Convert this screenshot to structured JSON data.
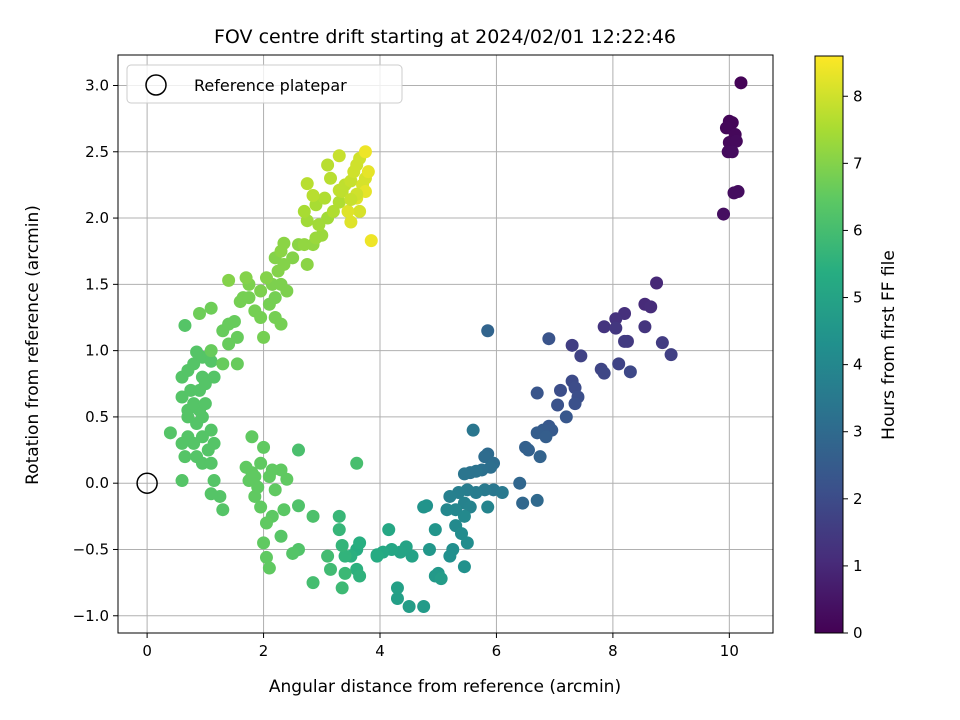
{
  "chart_data": {
    "type": "scatter",
    "title": "FOV centre drift starting at 2024/02/01 12:22:46",
    "xlabel": "Angular distance from reference (arcmin)",
    "ylabel": "Rotation from reference (arcmin)",
    "xlim": [
      -0.5,
      10.75
    ],
    "ylim": [
      -1.13,
      3.23
    ],
    "xticks": [
      "0",
      "2",
      "4",
      "6",
      "8",
      "10"
    ],
    "xtick_values": [
      0,
      2,
      4,
      6,
      8,
      10
    ],
    "yticks": [
      "−1.0",
      "−0.5",
      "0.0",
      "0.5",
      "1.0",
      "1.5",
      "2.0",
      "2.5",
      "3.0"
    ],
    "ytick_values": [
      -1.0,
      -0.5,
      0.0,
      0.5,
      1.0,
      1.5,
      2.0,
      2.5,
      3.0
    ],
    "grid": true,
    "legend": {
      "position": "upper-left",
      "entries": [
        "Reference platepar"
      ]
    },
    "reference_point": {
      "x": 0,
      "y": 0
    },
    "colorbar": {
      "label": "Hours from first FF file",
      "colormap": "viridis",
      "range": [
        0,
        8.6
      ],
      "ticks": [
        "0",
        "1",
        "2",
        "3",
        "4",
        "5",
        "6",
        "7",
        "8"
      ],
      "tick_values": [
        0,
        1,
        2,
        3,
        4,
        5,
        6,
        7,
        8
      ]
    },
    "series_points": [
      [
        10.2,
        3.02,
        0.05
      ],
      [
        10.0,
        2.73,
        0.1
      ],
      [
        10.05,
        2.72,
        0.12
      ],
      [
        9.95,
        2.68,
        0.15
      ],
      [
        10.1,
        2.63,
        0.18
      ],
      [
        10.0,
        2.57,
        0.2
      ],
      [
        10.12,
        2.58,
        0.22
      ],
      [
        9.98,
        2.5,
        0.25
      ],
      [
        10.05,
        2.5,
        0.28
      ],
      [
        10.15,
        2.2,
        0.3
      ],
      [
        10.08,
        2.19,
        0.32
      ],
      [
        9.9,
        2.03,
        0.35
      ],
      [
        8.75,
        1.51,
        1.0
      ],
      [
        8.55,
        1.35,
        1.05
      ],
      [
        8.65,
        1.33,
        1.1
      ],
      [
        8.2,
        1.28,
        1.2
      ],
      [
        8.05,
        1.24,
        1.25
      ],
      [
        7.85,
        1.18,
        1.3
      ],
      [
        8.55,
        1.18,
        1.35
      ],
      [
        8.05,
        1.17,
        1.4
      ],
      [
        8.25,
        1.07,
        1.45
      ],
      [
        8.2,
        1.07,
        1.5
      ],
      [
        8.85,
        1.06,
        1.55
      ],
      [
        7.3,
        1.04,
        1.6
      ],
      [
        9.0,
        0.97,
        1.65
      ],
      [
        7.45,
        0.96,
        1.7
      ],
      [
        8.1,
        0.9,
        1.75
      ],
      [
        7.8,
        0.86,
        1.8
      ],
      [
        7.85,
        0.83,
        1.85
      ],
      [
        8.3,
        0.84,
        1.9
      ],
      [
        7.3,
        0.77,
        1.95
      ],
      [
        7.35,
        0.72,
        2.0
      ],
      [
        7.1,
        0.7,
        2.05
      ],
      [
        7.4,
        0.65,
        2.1
      ],
      [
        7.35,
        0.6,
        2.15
      ],
      [
        7.05,
        0.59,
        2.2
      ],
      [
        6.9,
        1.09,
        2.25
      ],
      [
        6.7,
        0.68,
        2.3
      ],
      [
        7.2,
        0.5,
        2.35
      ],
      [
        6.9,
        0.43,
        2.4
      ],
      [
        6.95,
        0.4,
        2.45
      ],
      [
        6.8,
        0.4,
        2.5
      ],
      [
        6.7,
        0.38,
        2.55
      ],
      [
        6.85,
        0.35,
        2.6
      ],
      [
        6.5,
        0.27,
        2.65
      ],
      [
        6.55,
        0.25,
        2.7
      ],
      [
        6.75,
        0.2,
        2.75
      ],
      [
        5.85,
        1.15,
        2.8
      ],
      [
        6.4,
        0.0,
        2.85
      ],
      [
        6.45,
        -0.15,
        2.9
      ],
      [
        6.7,
        -0.13,
        2.95
      ],
      [
        5.85,
        0.22,
        3.0
      ],
      [
        5.8,
        0.2,
        3.05
      ],
      [
        5.95,
        0.15,
        3.1
      ],
      [
        5.9,
        0.12,
        3.15
      ],
      [
        5.75,
        0.1,
        3.2
      ],
      [
        5.55,
        0.08,
        3.25
      ],
      [
        5.65,
        0.09,
        3.3
      ],
      [
        5.45,
        0.07,
        3.35
      ],
      [
        5.6,
        0.4,
        3.4
      ],
      [
        5.95,
        -0.05,
        3.45
      ],
      [
        6.1,
        -0.07,
        3.5
      ],
      [
        5.8,
        -0.05,
        3.55
      ],
      [
        5.65,
        -0.07,
        3.6
      ],
      [
        5.5,
        -0.05,
        3.65
      ],
      [
        5.35,
        -0.07,
        3.7
      ],
      [
        5.2,
        -0.1,
        3.75
      ],
      [
        5.45,
        -0.15,
        3.8
      ],
      [
        5.55,
        -0.18,
        3.85
      ],
      [
        5.85,
        -0.18,
        3.9
      ],
      [
        5.3,
        -0.2,
        3.95
      ],
      [
        5.15,
        -0.2,
        4.0
      ],
      [
        5.45,
        -0.25,
        4.05
      ],
      [
        5.3,
        -0.32,
        4.1
      ],
      [
        5.4,
        -0.38,
        4.15
      ],
      [
        5.5,
        -0.45,
        4.2
      ],
      [
        5.25,
        -0.5,
        4.25
      ],
      [
        5.2,
        -0.55,
        4.3
      ],
      [
        5.45,
        -0.63,
        4.35
      ],
      [
        4.8,
        -0.17,
        4.4
      ],
      [
        4.75,
        -0.18,
        4.45
      ],
      [
        4.95,
        -0.35,
        4.5
      ],
      [
        4.85,
        -0.5,
        4.55
      ],
      [
        5.0,
        -0.68,
        4.6
      ],
      [
        4.95,
        -0.7,
        4.65
      ],
      [
        4.75,
        -0.93,
        4.7
      ],
      [
        5.05,
        -0.72,
        4.75
      ],
      [
        4.5,
        -0.93,
        4.8
      ],
      [
        4.3,
        -0.87,
        4.85
      ],
      [
        4.3,
        -0.79,
        4.9
      ],
      [
        4.55,
        -0.55,
        4.95
      ],
      [
        4.45,
        -0.48,
        5.0
      ],
      [
        4.35,
        -0.52,
        5.05
      ],
      [
        4.2,
        -0.5,
        5.1
      ],
      [
        4.15,
        -0.35,
        5.15
      ],
      [
        4.05,
        -0.52,
        5.2
      ],
      [
        3.95,
        -0.54,
        5.25
      ],
      [
        3.95,
        -0.55,
        5.3
      ],
      [
        3.6,
        -0.5,
        5.35
      ],
      [
        3.65,
        -0.45,
        5.4
      ],
      [
        3.5,
        -0.55,
        5.45
      ],
      [
        3.6,
        -0.65,
        5.5
      ],
      [
        3.65,
        -0.7,
        5.55
      ],
      [
        3.4,
        -0.55,
        5.6
      ],
      [
        3.35,
        -0.47,
        5.65
      ],
      [
        3.3,
        -0.35,
        5.7
      ],
      [
        3.3,
        -0.25,
        5.75
      ],
      [
        3.4,
        -0.68,
        5.8
      ],
      [
        3.35,
        -0.79,
        5.85
      ],
      [
        3.15,
        -0.65,
        5.9
      ],
      [
        3.1,
        -0.55,
        5.95
      ],
      [
        2.85,
        -0.75,
        6.0
      ],
      [
        3.6,
        0.15,
        6.05
      ],
      [
        2.6,
        0.25,
        6.1
      ],
      [
        2.85,
        -0.25,
        6.15
      ],
      [
        2.6,
        -0.17,
        6.2
      ],
      [
        2.6,
        -0.5,
        6.25
      ],
      [
        2.5,
        -0.53,
        6.3
      ],
      [
        2.3,
        -0.4,
        6.35
      ],
      [
        2.35,
        -0.2,
        6.4
      ],
      [
        2.15,
        -0.25,
        6.45
      ],
      [
        2.05,
        -0.3,
        6.5
      ],
      [
        2.0,
        -0.45,
        6.5
      ],
      [
        2.05,
        -0.56,
        6.5
      ],
      [
        2.1,
        -0.64,
        6.5
      ],
      [
        1.95,
        -0.18,
        6.5
      ],
      [
        1.85,
        -0.1,
        6.5
      ],
      [
        1.9,
        -0.03,
        6.5
      ],
      [
        1.75,
        0.02,
        6.5
      ],
      [
        1.8,
        0.08,
        6.5
      ],
      [
        1.7,
        0.12,
        6.5
      ],
      [
        1.95,
        0.15,
        6.5
      ],
      [
        2.0,
        0.27,
        6.5
      ],
      [
        1.8,
        0.35,
        6.5
      ],
      [
        1.85,
        0.05,
        6.5
      ],
      [
        2.1,
        0.05,
        6.5
      ],
      [
        2.2,
        -0.05,
        6.5
      ],
      [
        2.4,
        0.03,
        6.5
      ],
      [
        2.3,
        0.1,
        6.5
      ],
      [
        2.15,
        0.1,
        6.5
      ],
      [
        1.15,
        0.02,
        6.3
      ],
      [
        1.25,
        -0.1,
        6.3
      ],
      [
        1.3,
        -0.2,
        6.3
      ],
      [
        1.1,
        -0.08,
        6.3
      ],
      [
        0.85,
        0.2,
        6.3
      ],
      [
        0.95,
        0.15,
        6.3
      ],
      [
        1.1,
        0.15,
        6.3
      ],
      [
        1.05,
        0.25,
        6.3
      ],
      [
        1.15,
        0.3,
        6.3
      ],
      [
        0.7,
        0.35,
        6.3
      ],
      [
        0.8,
        0.3,
        6.3
      ],
      [
        0.6,
        0.3,
        6.3
      ],
      [
        0.65,
        0.2,
        6.3
      ],
      [
        0.4,
        0.38,
        6.3
      ],
      [
        0.6,
        0.02,
        6.3
      ],
      [
        0.85,
        0.45,
        6.3
      ],
      [
        0.7,
        0.5,
        6.3
      ],
      [
        0.9,
        0.55,
        6.3
      ],
      [
        0.7,
        0.55,
        6.3
      ],
      [
        0.8,
        0.6,
        6.3
      ],
      [
        0.6,
        0.65,
        6.3
      ],
      [
        0.75,
        0.7,
        6.3
      ],
      [
        0.9,
        0.7,
        6.3
      ],
      [
        0.6,
        0.8,
        6.3
      ],
      [
        0.7,
        0.85,
        6.3
      ],
      [
        0.8,
        0.9,
        6.3
      ],
      [
        0.95,
        0.95,
        6.3
      ],
      [
        0.85,
        0.99,
        6.3
      ],
      [
        0.65,
        1.19,
        6.3
      ],
      [
        0.95,
        0.8,
        6.3
      ],
      [
        1.0,
        0.75,
        6.3
      ],
      [
        1.15,
        0.8,
        6.3
      ],
      [
        1.1,
        0.92,
        6.3
      ],
      [
        0.95,
        0.5,
        6.3
      ],
      [
        1.0,
        0.6,
        6.3
      ],
      [
        1.1,
        0.4,
        6.3
      ],
      [
        0.95,
        0.35,
        6.3
      ],
      [
        1.3,
        0.9,
        6.6
      ],
      [
        1.55,
        0.9,
        6.6
      ],
      [
        1.1,
        1.0,
        6.6
      ],
      [
        1.4,
        1.05,
        6.6
      ],
      [
        1.55,
        1.1,
        6.6
      ],
      [
        1.3,
        1.15,
        6.6
      ],
      [
        1.4,
        1.2,
        6.6
      ],
      [
        1.5,
        1.22,
        6.6
      ],
      [
        0.9,
        1.28,
        6.7
      ],
      [
        1.1,
        1.32,
        6.7
      ],
      [
        1.6,
        1.37,
        6.8
      ],
      [
        1.65,
        1.4,
        6.8
      ],
      [
        1.75,
        1.4,
        6.8
      ],
      [
        1.85,
        1.3,
        6.8
      ],
      [
        1.95,
        1.25,
        6.8
      ],
      [
        2.0,
        1.1,
        6.8
      ],
      [
        2.2,
        1.25,
        6.8
      ],
      [
        2.3,
        1.2,
        6.8
      ],
      [
        2.1,
        1.35,
        6.8
      ],
      [
        2.2,
        1.4,
        6.8
      ],
      [
        1.95,
        1.45,
        6.9
      ],
      [
        2.15,
        1.5,
        6.9
      ],
      [
        2.3,
        1.5,
        6.9
      ],
      [
        2.4,
        1.45,
        6.9
      ],
      [
        1.75,
        1.5,
        6.9
      ],
      [
        2.05,
        1.55,
        7.0
      ],
      [
        2.25,
        1.6,
        7.0
      ],
      [
        2.35,
        1.65,
        7.0
      ],
      [
        1.4,
        1.53,
        7.0
      ],
      [
        2.5,
        1.7,
        7.0
      ],
      [
        1.7,
        1.55,
        7.0
      ],
      [
        2.2,
        1.7,
        7.0
      ],
      [
        2.3,
        1.75,
        7.1
      ],
      [
        2.35,
        1.81,
        7.1
      ],
      [
        2.6,
        1.8,
        7.1
      ],
      [
        2.75,
        1.65,
        7.1
      ],
      [
        2.7,
        1.8,
        7.2
      ],
      [
        2.85,
        1.8,
        7.2
      ],
      [
        2.9,
        1.85,
        7.3
      ],
      [
        3.0,
        1.87,
        7.3
      ],
      [
        2.95,
        1.95,
        7.4
      ],
      [
        3.1,
        2.0,
        7.4
      ],
      [
        2.75,
        1.98,
        7.4
      ],
      [
        2.7,
        2.05,
        7.5
      ],
      [
        2.9,
        2.1,
        7.5
      ],
      [
        3.05,
        2.15,
        7.6
      ],
      [
        3.2,
        2.05,
        7.6
      ],
      [
        3.3,
        2.12,
        7.6
      ],
      [
        3.15,
        2.3,
        7.7
      ],
      [
        3.1,
        2.4,
        7.7
      ],
      [
        2.75,
        2.26,
        7.7
      ],
      [
        2.85,
        2.17,
        7.7
      ],
      [
        3.35,
        2.2,
        7.8
      ],
      [
        3.4,
        2.25,
        7.8
      ],
      [
        3.5,
        2.28,
        7.9
      ],
      [
        3.55,
        2.35,
        8.0
      ],
      [
        3.6,
        2.4,
        8.0
      ],
      [
        3.65,
        2.45,
        8.0
      ],
      [
        3.7,
        2.25,
        8.1
      ],
      [
        3.75,
        2.3,
        8.1
      ],
      [
        3.65,
        2.05,
        8.1
      ],
      [
        3.45,
        2.05,
        8.2
      ],
      [
        3.5,
        1.97,
        8.2
      ],
      [
        3.6,
        2.15,
        8.2
      ],
      [
        3.75,
        2.2,
        8.3
      ],
      [
        3.8,
        2.35,
        8.3
      ],
      [
        3.75,
        2.5,
        8.4
      ],
      [
        3.85,
        1.83,
        8.4
      ],
      [
        3.3,
        2.47,
        7.9
      ],
      [
        3.3,
        2.21,
        7.8
      ],
      [
        3.6,
        2.18,
        8.0
      ],
      [
        3.5,
        2.14,
        7.9
      ]
    ]
  }
}
